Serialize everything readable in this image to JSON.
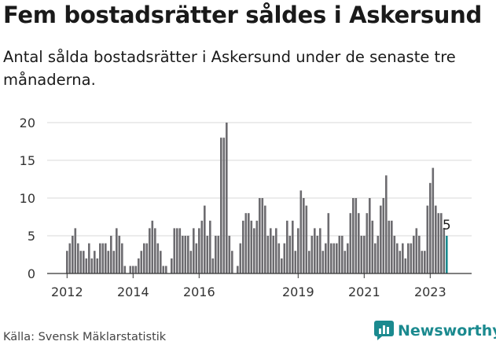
{
  "title": "Fem bostadsrätter såldes i Askersund",
  "subtitle": "Antal sålda bostadsrätter i Askersund under de senaste tre månaderna.",
  "source": "Källa: Svensk Mäklarstatistik",
  "brand": "Newsworthy",
  "colors": {
    "bar": "#6d6c70",
    "highlight": "#1b8a8f",
    "grid": "#d9d9d9",
    "axis": "#333333"
  },
  "chart_data": {
    "type": "bar",
    "title": "Fem bostadsrätter såldes i Askersund",
    "ylim": [
      0,
      20
    ],
    "yticks": [
      0,
      5,
      10,
      15,
      20
    ],
    "xticks": [
      "2012",
      "2014",
      "2016",
      "2019",
      "2021",
      "2023"
    ],
    "highlight_label": "5",
    "series": [
      {
        "start": "2012-01",
        "values": [
          3,
          4,
          5,
          6,
          4,
          3,
          3,
          2,
          4,
          2,
          3,
          2,
          4,
          4,
          4,
          3,
          5,
          3,
          6,
          5,
          4,
          1,
          0,
          1,
          1,
          1,
          2,
          3,
          4,
          4,
          6,
          7,
          6,
          4,
          3,
          1,
          1,
          0,
          2,
          6,
          6,
          6,
          5,
          5,
          5,
          3,
          6,
          4,
          6,
          7,
          9,
          5,
          7,
          2,
          5,
          5,
          18,
          18,
          20,
          5,
          3,
          0,
          1,
          4,
          7,
          8,
          8,
          7,
          6,
          7,
          10,
          10,
          9,
          5,
          6,
          5,
          6,
          4,
          2,
          4,
          7,
          5,
          7,
          3,
          6,
          11,
          10,
          9,
          3,
          5,
          6,
          5,
          6,
          3,
          4,
          8,
          4,
          4,
          4,
          5,
          5,
          3,
          4,
          8,
          10,
          10,
          8,
          5,
          5,
          8,
          10,
          7,
          4,
          5,
          9,
          10,
          13,
          7,
          7,
          5,
          4,
          3,
          4,
          2,
          4,
          4,
          5,
          6,
          5,
          3,
          3,
          9,
          12,
          14,
          9,
          8,
          8,
          6,
          5
        ]
      }
    ]
  }
}
